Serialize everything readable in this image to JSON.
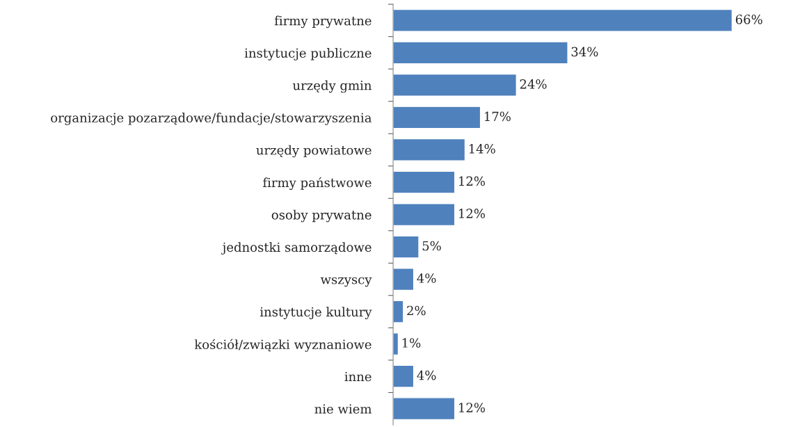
{
  "chart_data": {
    "type": "bar",
    "orientation": "horizontal",
    "categories": [
      "firmy prywatne",
      "instytucje publiczne",
      "urzędy gmin",
      "organizacje pozarządowe/fundacje/stowarzyszenia",
      "urzędy powiatowe",
      "firmy państwowe",
      "osoby prywatne",
      "jednostki samorządowe",
      "wszyscy",
      "instytucje kultury",
      "kościół/związki wyznaniowe",
      "inne",
      "nie wiem"
    ],
    "values": [
      66,
      34,
      24,
      17,
      14,
      12,
      12,
      5,
      4,
      2,
      1,
      4,
      12
    ],
    "value_labels": [
      "66%",
      "34%",
      "24%",
      "17%",
      "14%",
      "12%",
      "12%",
      "5%",
      "4%",
      "2%",
      "1%",
      "4%",
      "12%"
    ],
    "color": "#4f81bd",
    "grid": false,
    "legend": false
  }
}
